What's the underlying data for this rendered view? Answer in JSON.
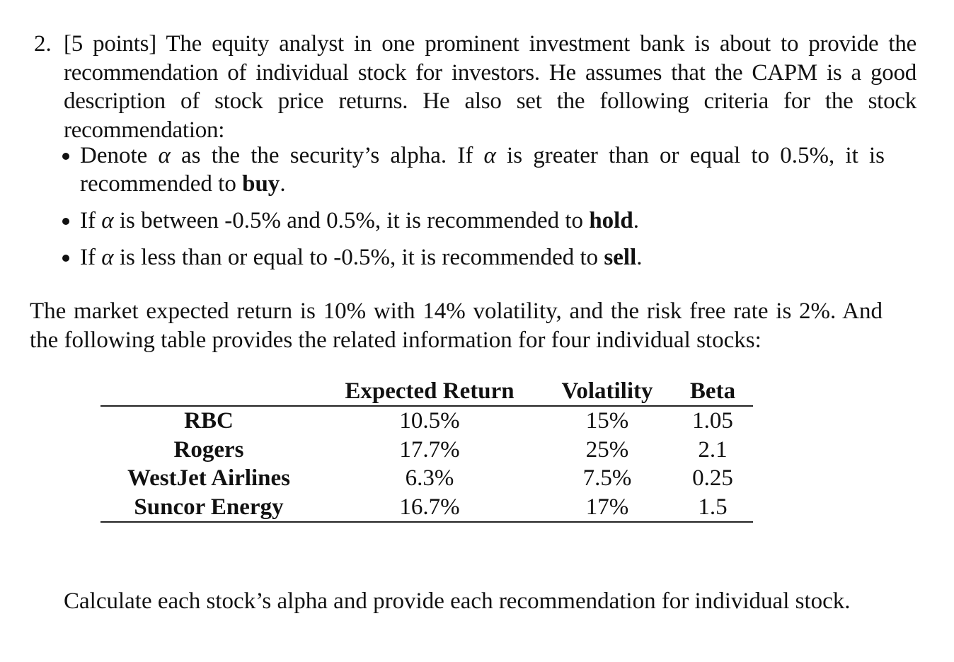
{
  "problem": {
    "number": "2.",
    "points": "[5 points]",
    "intro": "The equity analyst in one prominent investment bank is about to provide the recommendation of individual stock for investors.  He assumes that the CAPM is a good description of stock price returns.  He also set the following criteria for the stock recommendation:"
  },
  "criteria": [
    {
      "pre": "Denote ",
      "symbol": "α",
      "mid": " as the the security’s alpha.  If ",
      "symbol2": "α",
      "post": " is greater than or equal to 0.5%, it is recommended to ",
      "action": "buy",
      "end": "."
    },
    {
      "pre": "If ",
      "symbol": "α",
      "post": " is between -0.5% and 0.5%, it is recommended to ",
      "action": "hold",
      "end": "."
    },
    {
      "pre": "If ",
      "symbol": "α",
      "post": " is less than or equal to -0.5%, it is recommended to ",
      "action": "sell",
      "end": "."
    }
  ],
  "market_info": "The market expected return is 10% with 14% volatility, and the risk free rate is 2%. And the following table provides the related information for four individual stocks:",
  "table": {
    "headers": [
      "",
      "Expected Return",
      "Volatility",
      "Beta"
    ],
    "rows": [
      {
        "name": "RBC",
        "expected_return": "10.5%",
        "volatility": "15%",
        "beta": "1.05"
      },
      {
        "name": "Rogers",
        "expected_return": "17.7%",
        "volatility": "25%",
        "beta": "2.1"
      },
      {
        "name": "WestJet Airlines",
        "expected_return": "6.3%",
        "volatility": "7.5%",
        "beta": "0.25"
      },
      {
        "name": "Suncor Energy",
        "expected_return": "16.7%",
        "volatility": "17%",
        "beta": "1.5"
      }
    ]
  },
  "question": "Calculate each stock’s alpha and provide each recommendation for individual stock."
}
